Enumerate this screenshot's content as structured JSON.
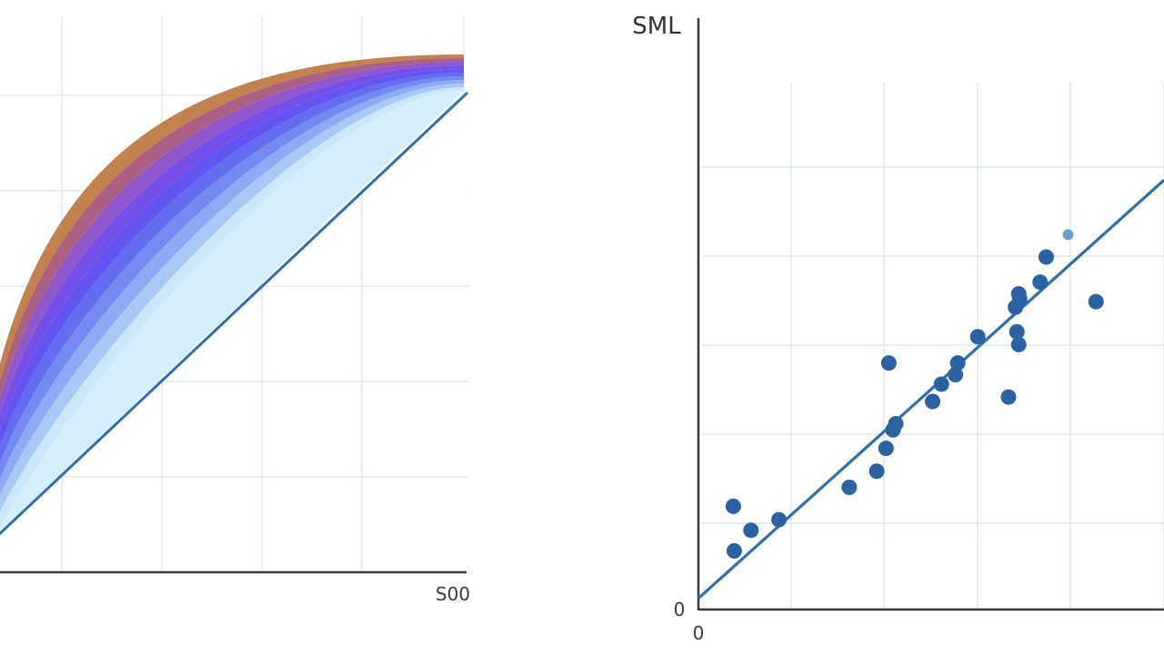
{
  "chart_data": [
    {
      "type": "area",
      "title": "",
      "x_tick_labels": [
        "S00"
      ],
      "xlim": [
        0,
        500
      ],
      "ylim": [
        0,
        500
      ],
      "grid": true,
      "series": [
        {
          "values_at_x": [
            0,
            100,
            200,
            300,
            400,
            500
          ],
          "color": "#c07a45"
        },
        {
          "color": "#a8577f"
        },
        {
          "color": "#8a4fc9"
        },
        {
          "color": "#6f45e8"
        },
        {
          "color": "#5b4cf0"
        },
        {
          "color": "#5c64ee"
        },
        {
          "color": "#6c85ef"
        },
        {
          "color": "#86a6f3"
        },
        {
          "color": "#a3c5f6"
        },
        {
          "color": "#c8e7fb"
        }
      ],
      "diagonal": {
        "x": [
          0,
          500
        ],
        "y": [
          0,
          500
        ],
        "color": "#2f6fb0"
      }
    },
    {
      "type": "scatter",
      "ylabel": "SML",
      "xlabel": "",
      "x_origin_label": "0",
      "y_origin_label": "0",
      "xlim": [
        0,
        100
      ],
      "ylim": [
        0,
        100
      ],
      "grid": true,
      "marker_color": "#2a62a2",
      "fit_line": {
        "x": [
          0,
          100
        ],
        "y": [
          2,
          77
        ],
        "color": "#2f6fb0"
      },
      "points": [
        {
          "x": 7.5,
          "y": 18.5
        },
        {
          "x": 7.7,
          "y": 10.5
        },
        {
          "x": 11.3,
          "y": 14.2
        },
        {
          "x": 17.3,
          "y": 16.1
        },
        {
          "x": 32.4,
          "y": 21.9
        },
        {
          "x": 38.3,
          "y": 24.8
        },
        {
          "x": 40.3,
          "y": 28.9
        },
        {
          "x": 40.9,
          "y": 44.2
        },
        {
          "x": 41.8,
          "y": 32.2
        },
        {
          "x": 42.4,
          "y": 33.3
        },
        {
          "x": 50.3,
          "y": 37.3
        },
        {
          "x": 52.2,
          "y": 40.4
        },
        {
          "x": 55.2,
          "y": 42.1
        },
        {
          "x": 55.7,
          "y": 44.2
        },
        {
          "x": 60.0,
          "y": 48.9
        },
        {
          "x": 66.6,
          "y": 38.1
        },
        {
          "x": 68.1,
          "y": 54.2
        },
        {
          "x": 68.4,
          "y": 49.8
        },
        {
          "x": 68.8,
          "y": 47.5
        },
        {
          "x": 68.8,
          "y": 56.6
        },
        {
          "x": 69.0,
          "y": 55.7
        },
        {
          "x": 73.4,
          "y": 58.7
        },
        {
          "x": 74.7,
          "y": 63.2
        },
        {
          "x": 85.4,
          "y": 55.2
        },
        {
          "x": 79.4,
          "y": 67.2,
          "light": true
        }
      ]
    }
  ]
}
